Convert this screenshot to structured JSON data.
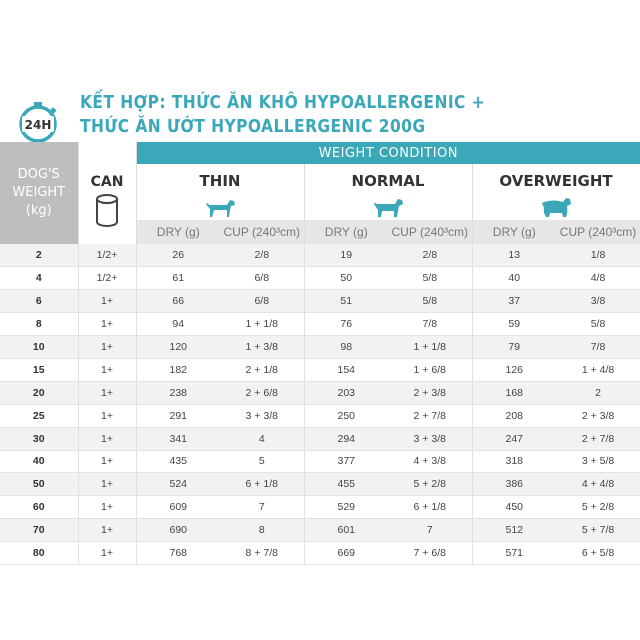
{
  "header": {
    "clock_label": "24H",
    "title_line1": "KẾT HỢP: THỨC ĂN KHÔ HYPOALLERGENIC +",
    "title_line2": "THỨC ĂN ƯỚT HYPOALLERGENIC 200G"
  },
  "colors": {
    "accent": "#3aa8b8",
    "grey_header": "#bcbec0",
    "subheader": "#e6e6e7"
  },
  "table": {
    "weight_header_line1": "DOG'S",
    "weight_header_line2": "WEIGHT",
    "weight_header_line3": "(kg)",
    "can_header": "CAN",
    "can_icon": "can-icon",
    "condition_header": "WEIGHT CONDITION",
    "conditions": [
      {
        "name": "THIN",
        "icon": "dog-icon"
      },
      {
        "name": "NORMAL",
        "icon": "dog-icon"
      },
      {
        "name": "OVERWEIGHT",
        "icon": "dog-icon"
      }
    ],
    "dry_label": "DRY (g)",
    "cup_label": "CUP (240³cm)",
    "rows": [
      {
        "weight": "2",
        "can": "1/2+",
        "thin_dry": "26",
        "thin_cup": "2/8",
        "normal_dry": "19",
        "normal_cup": "2/8",
        "over_dry": "13",
        "over_cup": "1/8"
      },
      {
        "weight": "4",
        "can": "1/2+",
        "thin_dry": "61",
        "thin_cup": "6/8",
        "normal_dry": "50",
        "normal_cup": "5/8",
        "over_dry": "40",
        "over_cup": "4/8"
      },
      {
        "weight": "6",
        "can": "1+",
        "thin_dry": "66",
        "thin_cup": "6/8",
        "normal_dry": "51",
        "normal_cup": "5/8",
        "over_dry": "37",
        "over_cup": "3/8"
      },
      {
        "weight": "8",
        "can": "1+",
        "thin_dry": "94",
        "thin_cup": "1 + 1/8",
        "normal_dry": "76",
        "normal_cup": "7/8",
        "over_dry": "59",
        "over_cup": "5/8"
      },
      {
        "weight": "10",
        "can": "1+",
        "thin_dry": "120",
        "thin_cup": "1 + 3/8",
        "normal_dry": "98",
        "normal_cup": "1 + 1/8",
        "over_dry": "79",
        "over_cup": "7/8"
      },
      {
        "weight": "15",
        "can": "1+",
        "thin_dry": "182",
        "thin_cup": "2 + 1/8",
        "normal_dry": "154",
        "normal_cup": "1 + 6/8",
        "over_dry": "126",
        "over_cup": "1 + 4/8"
      },
      {
        "weight": "20",
        "can": "1+",
        "thin_dry": "238",
        "thin_cup": "2 + 6/8",
        "normal_dry": "203",
        "normal_cup": "2 + 3/8",
        "over_dry": "168",
        "over_cup": "2"
      },
      {
        "weight": "25",
        "can": "1+",
        "thin_dry": "291",
        "thin_cup": "3 + 3/8",
        "normal_dry": "250",
        "normal_cup": "2 + 7/8",
        "over_dry": "208",
        "over_cup": "2 + 3/8"
      },
      {
        "weight": "30",
        "can": "1+",
        "thin_dry": "341",
        "thin_cup": "4",
        "normal_dry": "294",
        "normal_cup": "3 + 3/8",
        "over_dry": "247",
        "over_cup": "2 + 7/8"
      },
      {
        "weight": "40",
        "can": "1+",
        "thin_dry": "435",
        "thin_cup": "5",
        "normal_dry": "377",
        "normal_cup": "4 + 3/8",
        "over_dry": "318",
        "over_cup": "3 + 5/8"
      },
      {
        "weight": "50",
        "can": "1+",
        "thin_dry": "524",
        "thin_cup": "6 + 1/8",
        "normal_dry": "455",
        "normal_cup": "5 + 2/8",
        "over_dry": "386",
        "over_cup": "4 + 4/8"
      },
      {
        "weight": "60",
        "can": "1+",
        "thin_dry": "609",
        "thin_cup": "7",
        "normal_dry": "529",
        "normal_cup": "6 + 1/8",
        "over_dry": "450",
        "over_cup": "5 + 2/8"
      },
      {
        "weight": "70",
        "can": "1+",
        "thin_dry": "690",
        "thin_cup": "8",
        "normal_dry": "601",
        "normal_cup": "7",
        "over_dry": "512",
        "over_cup": "5 + 7/8"
      },
      {
        "weight": "80",
        "can": "1+",
        "thin_dry": "768",
        "thin_cup": "8 + 7/8",
        "normal_dry": "669",
        "normal_cup": "7 + 6/8",
        "over_dry": "571",
        "over_cup": "6 + 5/8"
      }
    ]
  }
}
